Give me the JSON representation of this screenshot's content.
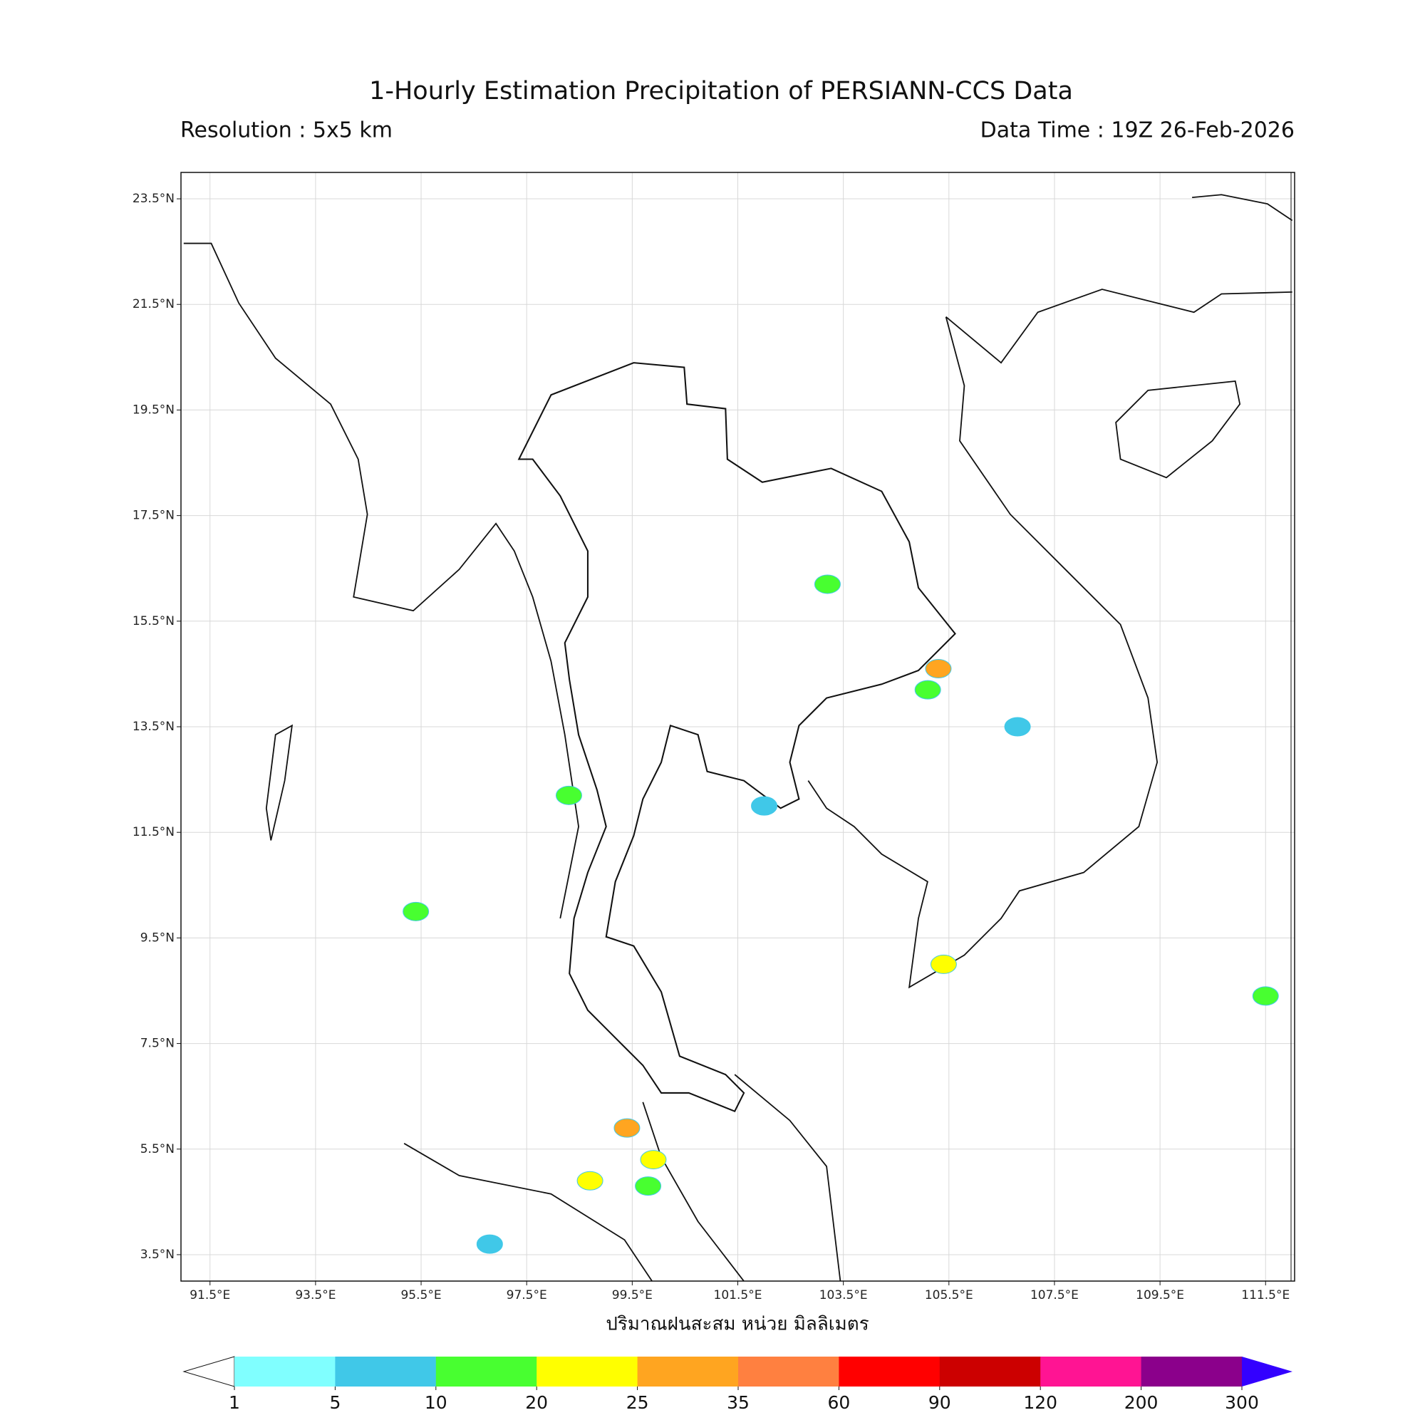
{
  "map": {
    "title": "1-Hourly Estimation Precipitation of PERSIANN-CCS Data",
    "subtitle_left": "Resolution : 5x5 km",
    "subtitle_right": "Data Time : 19Z 26-Feb-2026",
    "xlabel": "ปริมาณฝนสะสม หน่วย มิลลิเมตร",
    "xlim": [
      90.95,
      112.05
    ],
    "ylim": [
      3.0,
      24.0
    ],
    "xticks": [
      {
        "value": 91.5,
        "label": "91.5°E"
      },
      {
        "value": 93.5,
        "label": "93.5°E"
      },
      {
        "value": 95.5,
        "label": "95.5°E"
      },
      {
        "value": 97.5,
        "label": "97.5°E"
      },
      {
        "value": 99.5,
        "label": "99.5°E"
      },
      {
        "value": 101.5,
        "label": "101.5°E"
      },
      {
        "value": 103.5,
        "label": "103.5°E"
      },
      {
        "value": 105.5,
        "label": "105.5°E"
      },
      {
        "value": 107.5,
        "label": "107.5°E"
      },
      {
        "value": 109.5,
        "label": "109.5°E"
      },
      {
        "value": 111.5,
        "label": "111.5°E"
      }
    ],
    "yticks": [
      {
        "value": 3.5,
        "label": "3.5°N"
      },
      {
        "value": 5.5,
        "label": "5.5°N"
      },
      {
        "value": 7.5,
        "label": "7.5°N"
      },
      {
        "value": 9.5,
        "label": "9.5°N"
      },
      {
        "value": 11.5,
        "label": "11.5°N"
      },
      {
        "value": 13.5,
        "label": "13.5°N"
      },
      {
        "value": 15.5,
        "label": "15.5°N"
      },
      {
        "value": 17.5,
        "label": "17.5°N"
      },
      {
        "value": 19.5,
        "label": "19.5°N"
      },
      {
        "value": 21.5,
        "label": "21.5°N"
      },
      {
        "value": 23.5,
        "label": "23.5°N"
      }
    ],
    "grid": true,
    "colorbar": {
      "levels": [
        1,
        5,
        10,
        20,
        25,
        35,
        60,
        90,
        120,
        200,
        300
      ],
      "colors": [
        "#80ffff",
        "#40c8e8",
        "#48ff30",
        "#ffff00",
        "#ffa520",
        "#ff8040",
        "#ff0000",
        "#cc0000",
        "#ff1493",
        "#8b008b"
      ],
      "over_color": "#3300ff",
      "under_color": "#ffffff"
    },
    "rain_cells": [
      {
        "lon": 105.3,
        "lat": 14.6,
        "mm": 25
      },
      {
        "lon": 105.1,
        "lat": 14.2,
        "mm": 10
      },
      {
        "lon": 99.8,
        "lat": 4.8,
        "mm": 10
      },
      {
        "lon": 99.9,
        "lat": 5.3,
        "mm": 20
      },
      {
        "lon": 99.4,
        "lat": 5.9,
        "mm": 25
      },
      {
        "lon": 102.0,
        "lat": 12.0,
        "mm": 5
      },
      {
        "lon": 98.3,
        "lat": 12.2,
        "mm": 10
      },
      {
        "lon": 95.4,
        "lat": 10.0,
        "mm": 10
      },
      {
        "lon": 105.4,
        "lat": 9.0,
        "mm": 20
      },
      {
        "lon": 106.8,
        "lat": 13.5,
        "mm": 5
      },
      {
        "lon": 103.2,
        "lat": 16.2,
        "mm": 10
      },
      {
        "lon": 111.5,
        "lat": 8.4,
        "mm": 10
      },
      {
        "lon": 98.7,
        "lat": 4.9,
        "mm": 20
      },
      {
        "lon": 96.8,
        "lat": 3.7,
        "mm": 5
      }
    ]
  }
}
